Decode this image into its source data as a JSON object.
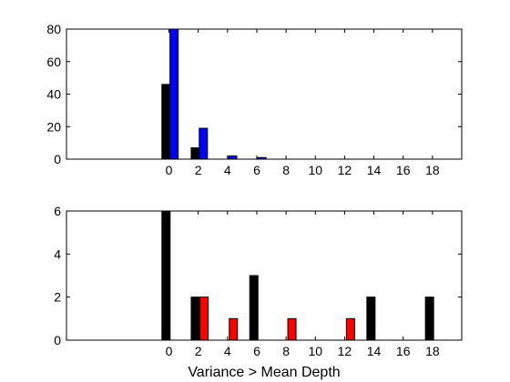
{
  "chart_data": [
    {
      "type": "bar",
      "xlim": [
        -7,
        20
      ],
      "ylim": [
        0,
        80
      ],
      "xticks": [
        0,
        2,
        4,
        6,
        8,
        10,
        12,
        14,
        16,
        18
      ],
      "yticks": [
        0,
        20,
        40,
        60,
        80
      ],
      "xlabel": "",
      "ylabel": "",
      "grid": false,
      "series": [
        {
          "color": "#000000",
          "x": [
            -0.2,
            1.8,
            3.8,
            5.8
          ],
          "values": [
            46,
            7,
            0,
            0
          ]
        },
        {
          "color": "#0000ff",
          "x": [
            0.35,
            2.35,
            4.35,
            6.35
          ],
          "values": [
            80,
            19,
            2,
            1
          ]
        }
      ]
    },
    {
      "type": "bar",
      "xlim": [
        -7,
        20
      ],
      "ylim": [
        0,
        6
      ],
      "xticks": [
        0,
        2,
        4,
        6,
        8,
        10,
        12,
        14,
        16,
        18
      ],
      "yticks": [
        0,
        2,
        4,
        6
      ],
      "xlabel": "Variance > Mean Depth",
      "ylabel": "",
      "grid": false,
      "series": [
        {
          "color": "#000000",
          "x": [
            -0.2,
            1.8,
            5.8,
            13.8,
            17.8
          ],
          "values": [
            6,
            2,
            3,
            2,
            2
          ]
        },
        {
          "color": "#ff0000",
          "x": [
            2.4,
            4.4,
            8.4,
            12.4
          ],
          "values": [
            2,
            1,
            1,
            1
          ]
        }
      ]
    }
  ]
}
